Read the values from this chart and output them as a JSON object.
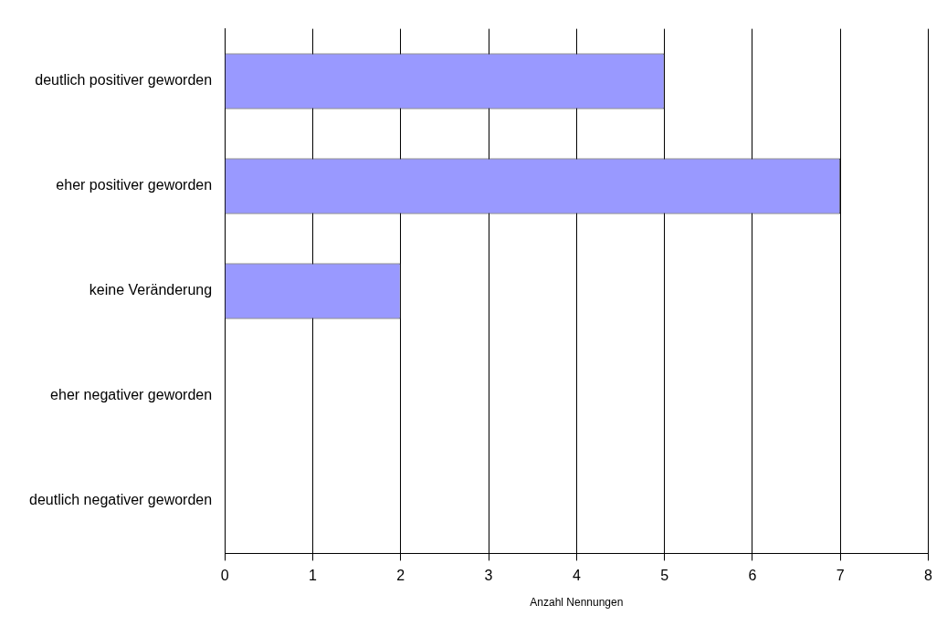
{
  "chart_data": {
    "type": "bar",
    "orientation": "horizontal",
    "xlabel": "Anzahl Nennungen",
    "categories": [
      "deutlich positiver geworden",
      "eher positiver geworden",
      "keine Veränderung",
      "eher negativer geworden",
      "deutlich negativer geworden"
    ],
    "values": [
      5,
      7,
      2,
      0,
      0
    ],
    "color": "#9999ff",
    "xlim": [
      0,
      8
    ],
    "xticks": [
      0,
      1,
      2,
      3,
      4,
      5,
      6,
      7,
      8
    ],
    "grid": "x",
    "legend": false
  }
}
